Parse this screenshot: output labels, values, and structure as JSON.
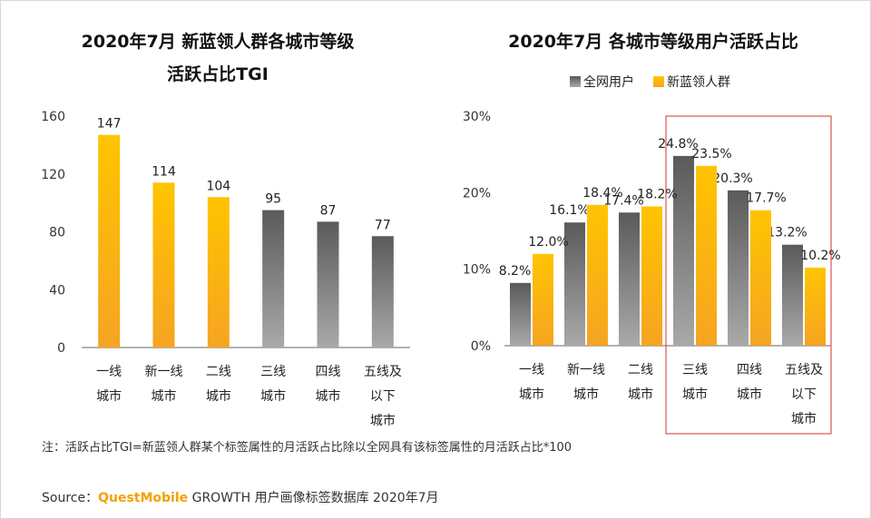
{
  "colors": {
    "gold_top": "#ffc400",
    "gold_bottom": "#f6a422",
    "gray_top": "#5a5a5a",
    "gray_bottom": "#a9a9a9",
    "highlight_box": "#d9534f"
  },
  "left_chart": {
    "title_line1": "2020年7月 新蓝领人群各城市等级",
    "title_line2": "活跃占比TGI"
  },
  "right_chart": {
    "title": "2020年7月 各城市等级用户活跃占比"
  },
  "note": "注：活跃占比TGI=新蓝领人群某个标签属性的月活跃占比除以全网具有该标签属性的月活跃占比*100",
  "source": {
    "prefix": "Source：",
    "brand": "QuestMobile",
    "rest": " GROWTH 用户画像标签数据库 2020年7月"
  },
  "chart_data": [
    {
      "type": "bar",
      "categories": [
        [
          "一线",
          "城市"
        ],
        [
          "新一线",
          "城市"
        ],
        [
          "二线",
          "城市"
        ],
        [
          "三线",
          "城市"
        ],
        [
          "四线",
          "城市"
        ],
        [
          "五线及",
          "以下",
          "城市"
        ]
      ],
      "values": [
        147,
        114,
        104,
        95,
        87,
        77
      ],
      "bar_colors": [
        "gold",
        "gold",
        "gold",
        "gray",
        "gray",
        "gray"
      ],
      "ylim": [
        0,
        160
      ],
      "yticks": [
        0,
        40,
        80,
        120,
        160
      ],
      "legend": "none"
    },
    {
      "type": "bar",
      "categories": [
        [
          "一线",
          "城市"
        ],
        [
          "新一线",
          "城市"
        ],
        [
          "二线",
          "城市"
        ],
        [
          "三线",
          "城市"
        ],
        [
          "四线",
          "城市"
        ],
        [
          "五线及",
          "以下",
          "城市"
        ]
      ],
      "series": [
        {
          "name": "全网用户",
          "values": [
            8.2,
            16.1,
            17.4,
            24.8,
            20.3,
            13.2
          ],
          "color": "gray"
        },
        {
          "name": "新蓝领人群",
          "values": [
            12.0,
            18.4,
            18.2,
            23.5,
            17.7,
            10.2
          ],
          "color": "gold"
        }
      ],
      "ylim": [
        0,
        30
      ],
      "yticks": [
        "0%",
        "10%",
        "20%",
        "30%"
      ],
      "value_suffix": "%",
      "legend": "top-right",
      "highlighted_categories": [
        3,
        4,
        5
      ]
    }
  ]
}
